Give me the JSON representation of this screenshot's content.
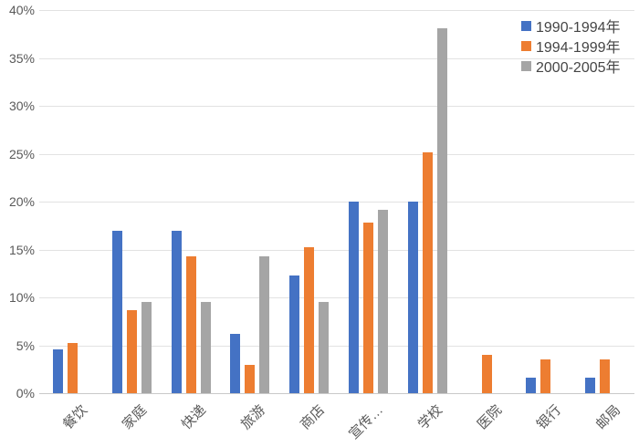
{
  "chart_data": {
    "type": "bar",
    "title": "",
    "categories": [
      "餐饮",
      "家庭",
      "快递",
      "旅游",
      "商店",
      "宣传…",
      "学校",
      "医院",
      "银行",
      "邮局"
    ],
    "series": [
      {
        "name": "1990-1994年",
        "color": "#4472C4",
        "values": [
          4.6,
          17.0,
          17.0,
          6.2,
          12.3,
          20.0,
          20.0,
          0,
          1.6,
          1.6
        ]
      },
      {
        "name": "1994-1999年",
        "color": "#ED7D31",
        "values": [
          5.2,
          8.7,
          14.3,
          3.0,
          15.2,
          17.8,
          25.1,
          4.0,
          3.5,
          3.5
        ]
      },
      {
        "name": "2000-2005年",
        "color": "#A5A5A5",
        "values": [
          0,
          9.5,
          9.5,
          14.3,
          9.5,
          19.1,
          38.1,
          0,
          0,
          0
        ]
      }
    ],
    "xlabel": "",
    "ylabel": "",
    "ylim": [
      0,
      40
    ],
    "ytick_step": 5,
    "ytick_labels": [
      "0%",
      "5%",
      "10%",
      "15%",
      "20%",
      "25%",
      "30%",
      "35%",
      "40%"
    ],
    "grid": true,
    "legend_position": "top-right"
  },
  "colors": {
    "background": "#FFFFFF",
    "gridline": "#E2E2E2",
    "axis_line": "#C9C9C9",
    "tick_text": "#595959",
    "legend_text": "#454545"
  }
}
